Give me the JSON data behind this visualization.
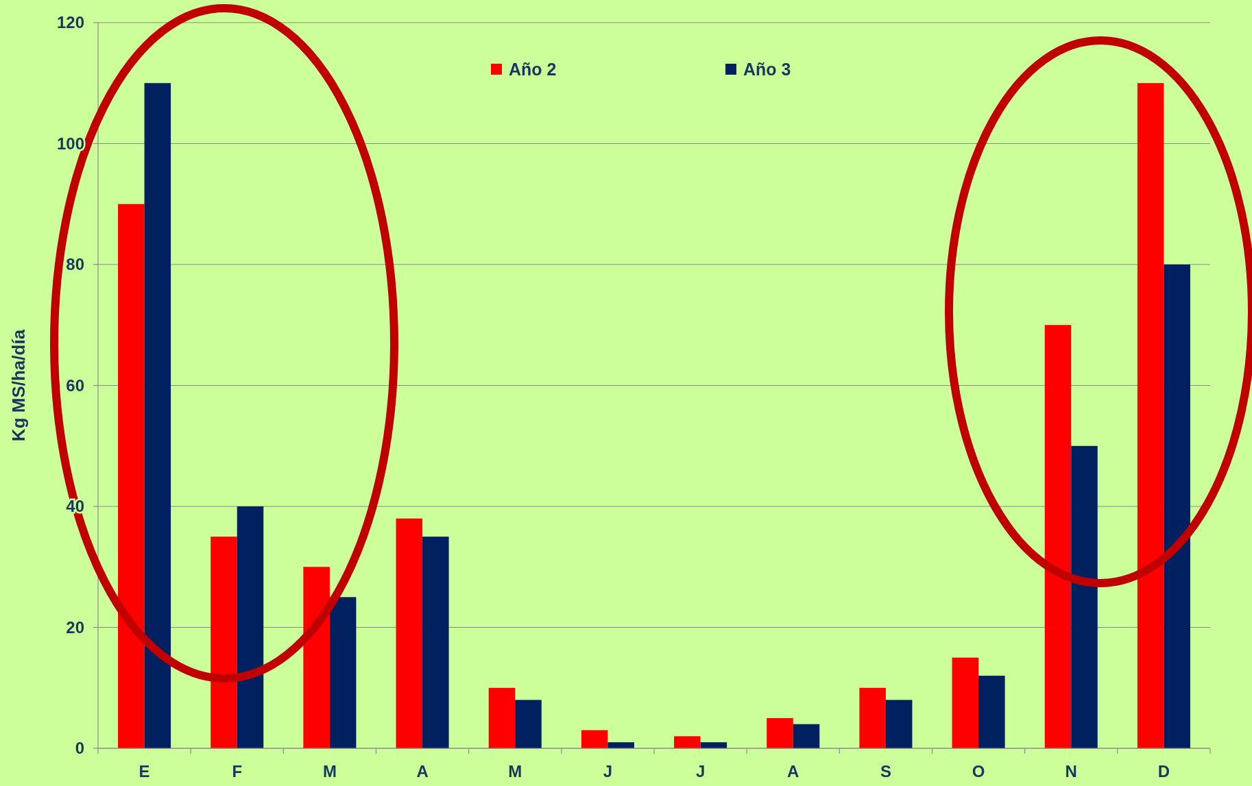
{
  "chart_data": {
    "type": "bar",
    "ylabel": "Kg MS/ha/día",
    "categories": [
      "E",
      "F",
      "M",
      "A",
      "M",
      "J",
      "J",
      "A",
      "S",
      "O",
      "N",
      "D"
    ],
    "series": [
      {
        "name": "Año 2",
        "color": "#ff0000",
        "values": [
          90,
          35,
          30,
          38,
          10,
          3,
          2,
          5,
          10,
          15,
          70,
          110
        ]
      },
      {
        "name": "Año 3",
        "color": "#002060",
        "values": [
          110,
          40,
          25,
          35,
          8,
          1,
          1,
          4,
          8,
          12,
          50,
          80
        ]
      }
    ],
    "ylim": [
      0,
      120
    ],
    "yticks": [
      0,
      20,
      40,
      60,
      80,
      100,
      120
    ],
    "grid": "y",
    "legend": "top"
  }
}
